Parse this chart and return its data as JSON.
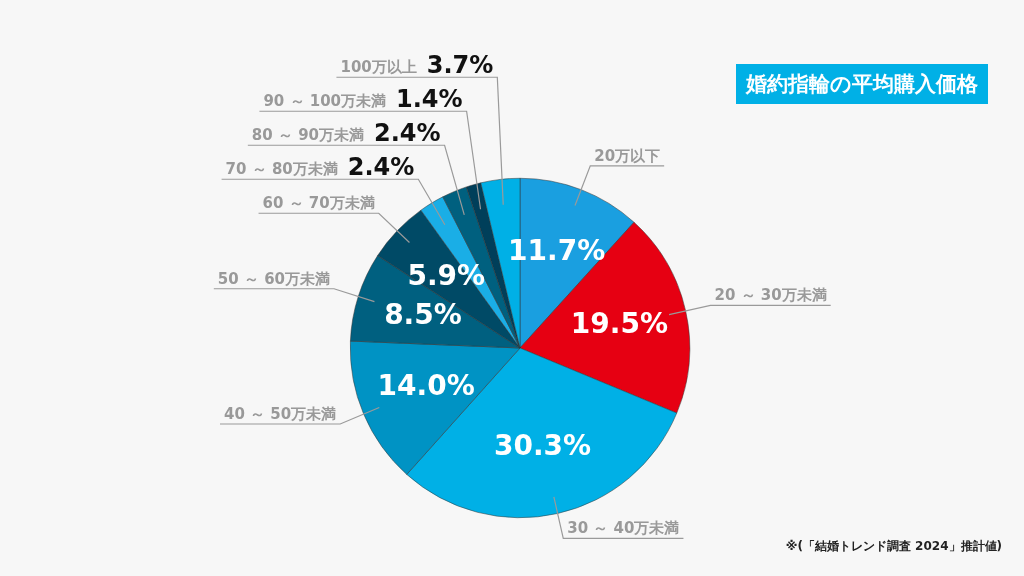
{
  "chart_data": {
    "type": "pie",
    "title": "婚約指輪の平均購入価格",
    "categories": [
      "20万以下",
      "20 ～ 30万未満",
      "30 ～ 40万未満",
      "40 ～ 50万未満",
      "50 ～ 60万未満",
      "60 ～ 70万未満",
      "70 ～ 80万未満",
      "80 ～ 90万未満",
      "90 ～ 100万未満",
      "100万以上"
    ],
    "values": [
      11.7,
      19.5,
      30.3,
      14.0,
      8.5,
      5.9,
      2.4,
      2.4,
      1.4,
      3.7
    ],
    "value_labels": [
      "11.7%",
      "19.5%",
      "30.3%",
      "14.0%",
      "8.5%",
      "5.9%",
      "2.4%",
      "2.4%",
      "1.4%",
      "3.7%"
    ],
    "colors": [
      "#1a9fe0",
      "#e60012",
      "#00b0e6",
      "#0093c4",
      "#006080",
      "#004a66",
      "#1aaee6",
      "#00607f",
      "#003f5a",
      "#00b0e6"
    ],
    "legend": false,
    "annotations": [
      "※(「結婚トレンド調査 2024」推計値)"
    ]
  }
}
